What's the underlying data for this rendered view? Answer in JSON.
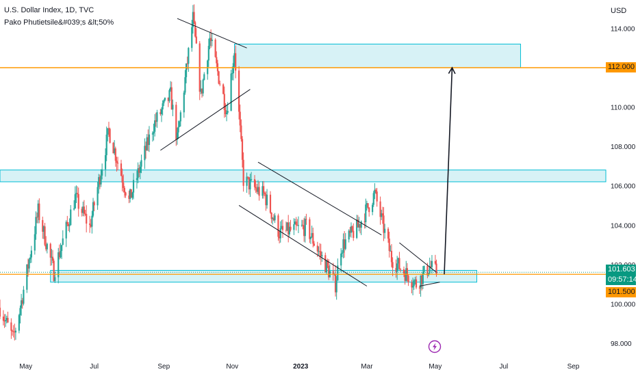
{
  "header": {
    "symbol_line": "U.S. Dollar Index, 1D, TVC",
    "author_line": "Pako Phutietsile&#039;s &lt;50%"
  },
  "axis": {
    "currency": "USD"
  },
  "price_badges": {
    "resistance": "112.000",
    "current_price": "101.603",
    "countdown": "09:57:14",
    "support": "101.500"
  },
  "colors": {
    "up": "#26a69a",
    "down": "#ef5350",
    "zone_fill": "#d7f2f6",
    "zone_border": "#00bcd4",
    "level_line": "#ff9800",
    "current_badge": "#089981",
    "drawing": "#131722",
    "flash_icon": "#9c27b0"
  },
  "icons": {
    "flash": "lightning-bolt-icon"
  },
  "chart_data": {
    "type": "candlestick",
    "title": "U.S. Dollar Index, 1D, TVC",
    "ylabel": "USD",
    "ylim": [
      97.2,
      115.3
    ],
    "x_range": [
      "2022-04-08",
      "2023-09-30"
    ],
    "y_ticks": [
      "98.000",
      "100.000",
      "102.000",
      "104.000",
      "106.000",
      "108.000",
      "110.000",
      "112.000",
      "114.000"
    ],
    "x_ticks": [
      {
        "label": "May",
        "date": "2022-05-01"
      },
      {
        "label": "Jul",
        "date": "2022-07-01"
      },
      {
        "label": "Sep",
        "date": "2022-09-01"
      },
      {
        "label": "Nov",
        "date": "2022-11-01"
      },
      {
        "label": "2023",
        "date": "2023-01-01"
      },
      {
        "label": "Mar",
        "date": "2023-03-01"
      },
      {
        "label": "May",
        "date": "2023-05-01"
      },
      {
        "label": "Jul",
        "date": "2023-07-01"
      },
      {
        "label": "Sep",
        "date": "2023-09-01"
      }
    ],
    "price_path": [
      [
        "2022-04-08",
        99.8
      ],
      [
        "2022-04-20",
        98.2
      ],
      [
        "2022-04-28",
        100.4
      ],
      [
        "2022-05-12",
        104.7
      ],
      [
        "2022-05-26",
        101.6
      ],
      [
        "2022-06-14",
        105.4
      ],
      [
        "2022-06-27",
        103.9
      ],
      [
        "2022-07-14",
        108.8
      ],
      [
        "2022-08-01",
        105.2
      ],
      [
        "2022-08-23",
        109.1
      ],
      [
        "2022-09-07",
        110.6
      ],
      [
        "2022-09-13",
        108.3
      ],
      [
        "2022-09-27",
        114.5
      ],
      [
        "2022-10-04",
        110.6
      ],
      [
        "2022-10-12",
        113.5
      ],
      [
        "2022-10-27",
        109.8
      ],
      [
        "2022-11-03",
        112.9
      ],
      [
        "2022-11-11",
        106.3
      ],
      [
        "2022-11-30",
        105.5
      ],
      [
        "2022-12-13",
        103.6
      ],
      [
        "2023-01-06",
        103.9
      ],
      [
        "2023-02-01",
        101.0
      ],
      [
        "2023-02-06",
        102.9
      ],
      [
        "2023-02-21",
        103.9
      ],
      [
        "2023-03-08",
        105.6
      ],
      [
        "2023-03-23",
        102.3
      ],
      [
        "2023-04-04",
        101.6
      ],
      [
        "2023-04-14",
        101.0
      ],
      [
        "2023-04-26",
        101.9
      ],
      [
        "2023-05-02",
        101.6
      ]
    ],
    "series_colors": {
      "up": "#26a69a",
      "down": "#ef5350"
    },
    "horizontal_lines": [
      112.0,
      101.5
    ],
    "current_price": 101.603,
    "zones": [
      {
        "start": "2022-11-03",
        "end": "2023-07-16",
        "top": 113.2,
        "bottom": 112.0
      },
      {
        "start": "2022-04-08",
        "end": "2023-09-30",
        "top": 106.8,
        "bottom": 106.2
      },
      {
        "start": "2022-05-23",
        "end": "2023-06-07",
        "top": 101.7,
        "bottom": 101.1
      }
    ],
    "trendlines": [
      {
        "start": [
          "2022-09-13",
          114.5
        ],
        "end": [
          "2022-11-14",
          113.0
        ]
      },
      {
        "start": [
          "2022-08-29",
          107.8
        ],
        "end": [
          "2022-11-17",
          110.9
        ]
      },
      {
        "start": [
          "2022-11-24",
          107.2
        ],
        "end": [
          "2023-03-14",
          103.5
        ]
      },
      {
        "start": [
          "2022-11-07",
          105.0
        ],
        "end": [
          "2023-03-01",
          100.9
        ]
      },
      {
        "start": [
          "2023-03-30",
          103.1
        ],
        "end": [
          "2023-05-02",
          101.6
        ]
      },
      {
        "start": [
          "2023-04-17",
          100.9
        ],
        "end": [
          "2023-05-05",
          101.1
        ]
      }
    ],
    "projection_arrow": {
      "start": [
        "2023-05-09",
        101.5
      ],
      "end": [
        "2023-05-16",
        112.0
      ]
    }
  }
}
